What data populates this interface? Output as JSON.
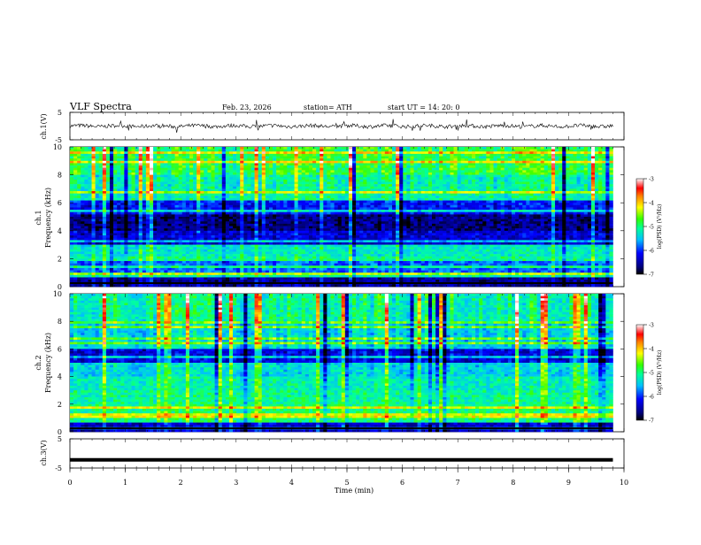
{
  "header": {
    "title": "VLF  Spectra",
    "date": "Feb. 23, 2026",
    "station": "station= ATH",
    "start_ut": "start  UT  =    14: 20: 0"
  },
  "chart_data": [
    {
      "type": "line",
      "id": "ch1",
      "ylabel": "ch.1(V)",
      "ylim": [
        -5,
        5
      ],
      "yticks": [
        5,
        -5
      ],
      "xlim": [
        0,
        10
      ],
      "x_data_end_min": 9.8,
      "description": "waveform noise centred near 0 V"
    },
    {
      "type": "heatmap",
      "id": "ch1-spectrogram",
      "ylabel_top": "ch.1",
      "ylabel": "Frequency  (kHz)",
      "ylim": [
        0,
        10
      ],
      "yticks": [
        0,
        2,
        4,
        6,
        8,
        10
      ],
      "xlim": [
        0,
        10
      ],
      "x_data_end_min": 9.8,
      "colorbar": {
        "label": "log(PSD) (V²/Hz)",
        "ticks": [
          -3,
          -4,
          -5,
          -6,
          -7
        ],
        "range": [
          -7,
          -3
        ]
      },
      "bands_khz": [
        {
          "from": 0.0,
          "to": 0.6,
          "level": -6.6
        },
        {
          "from": 0.6,
          "to": 1.0,
          "level": -5.2
        },
        {
          "from": 1.0,
          "to": 2.2,
          "level": -5.9
        },
        {
          "from": 2.2,
          "to": 3.0,
          "level": -5.3
        },
        {
          "from": 3.0,
          "to": 4.0,
          "level": -6.4
        },
        {
          "from": 4.0,
          "to": 5.2,
          "level": -6.7
        },
        {
          "from": 5.2,
          "to": 6.2,
          "level": -6.2
        },
        {
          "from": 6.2,
          "to": 8.0,
          "level": -5.2
        },
        {
          "from": 8.0,
          "to": 10.0,
          "level": -4.9
        }
      ]
    },
    {
      "type": "heatmap",
      "id": "ch2-spectrogram",
      "ylabel_top": "ch.2",
      "ylabel": "Frequency  (kHz)",
      "ylim": [
        0,
        10
      ],
      "yticks": [
        0,
        2,
        4,
        6,
        8,
        10
      ],
      "xlim": [
        0,
        10
      ],
      "x_data_end_min": 9.8,
      "colorbar": {
        "label": "log(PSD) (V²/Hz)",
        "ticks": [
          -3,
          -4,
          -5,
          -6,
          -7
        ],
        "range": [
          -7,
          -3
        ]
      },
      "bands_khz": [
        {
          "from": 0.0,
          "to": 0.6,
          "level": -6.4
        },
        {
          "from": 0.6,
          "to": 2.0,
          "level": -5.0
        },
        {
          "from": 2.0,
          "to": 3.0,
          "level": -5.1
        },
        {
          "from": 3.0,
          "to": 4.0,
          "level": -5.2
        },
        {
          "from": 4.0,
          "to": 5.0,
          "level": -5.4
        },
        {
          "from": 5.0,
          "to": 6.0,
          "level": -6.3
        },
        {
          "from": 6.0,
          "to": 8.0,
          "level": -5.4
        },
        {
          "from": 8.0,
          "to": 10.0,
          "level": -5.1
        }
      ]
    },
    {
      "type": "line",
      "id": "ch3",
      "ylabel": "ch.3(V)",
      "ylim": [
        -5,
        5
      ],
      "yticks": [
        5,
        -5
      ],
      "xlim": [
        0,
        10
      ],
      "x_data_end_min": 9.8,
      "constant_value": -2.2,
      "xlabel": "Time  (min)",
      "xticks": [
        0,
        1,
        2,
        3,
        4,
        5,
        6,
        7,
        8,
        9,
        10
      ]
    }
  ]
}
